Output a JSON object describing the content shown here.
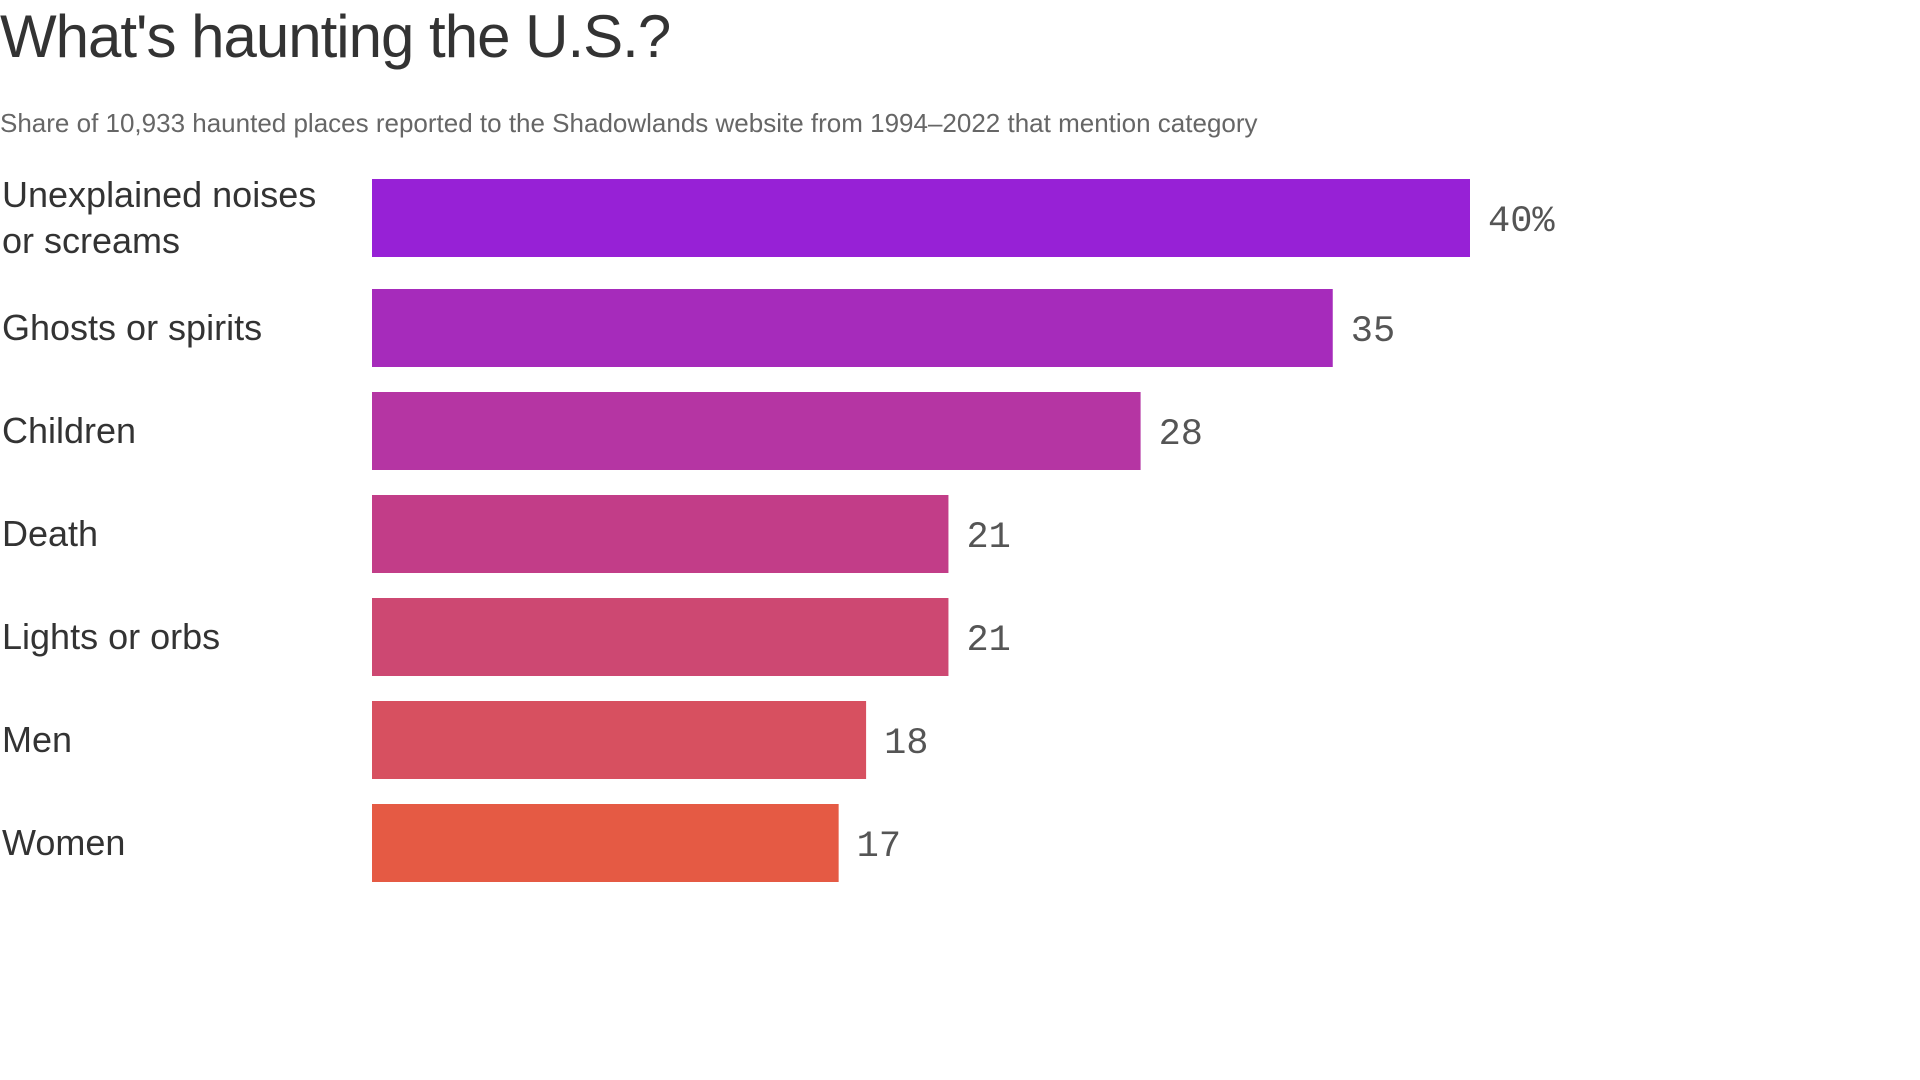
{
  "title": "What's haunting the U.S.?",
  "subtitle": "Share of 10,933 haunted places reported to the Shadowlands website from 1994–2022 that mention category",
  "chart_data": {
    "type": "bar",
    "orientation": "horizontal",
    "title": "What's haunting the U.S.?",
    "subtitle": "Share of 10,933 haunted places reported to the Shadowlands website from 1994–2022 that mention category",
    "categories": [
      "Unexplained noises or screams",
      "Ghosts or spirits",
      "Children",
      "Death",
      "Lights or orbs",
      "Men",
      "Women"
    ],
    "category_lines": [
      [
        "Unexplained noises",
        "or screams"
      ],
      [
        "Ghosts or spirits"
      ],
      [
        "Children"
      ],
      [
        "Death"
      ],
      [
        "Lights or orbs"
      ],
      [
        "Men"
      ],
      [
        "Women"
      ]
    ],
    "values": [
      40,
      35,
      28,
      21,
      21,
      18,
      17
    ],
    "value_labels": [
      "40%",
      "35",
      "28",
      "21",
      "21",
      "18",
      "17"
    ],
    "colors": [
      "#9721d6",
      "#a62bbb",
      "#b535a3",
      "#c23d88",
      "#cd4872",
      "#d75060",
      "#e55a44"
    ],
    "xlim": [
      0,
      40
    ],
    "unit": "%",
    "grid": false,
    "legend": "none"
  }
}
